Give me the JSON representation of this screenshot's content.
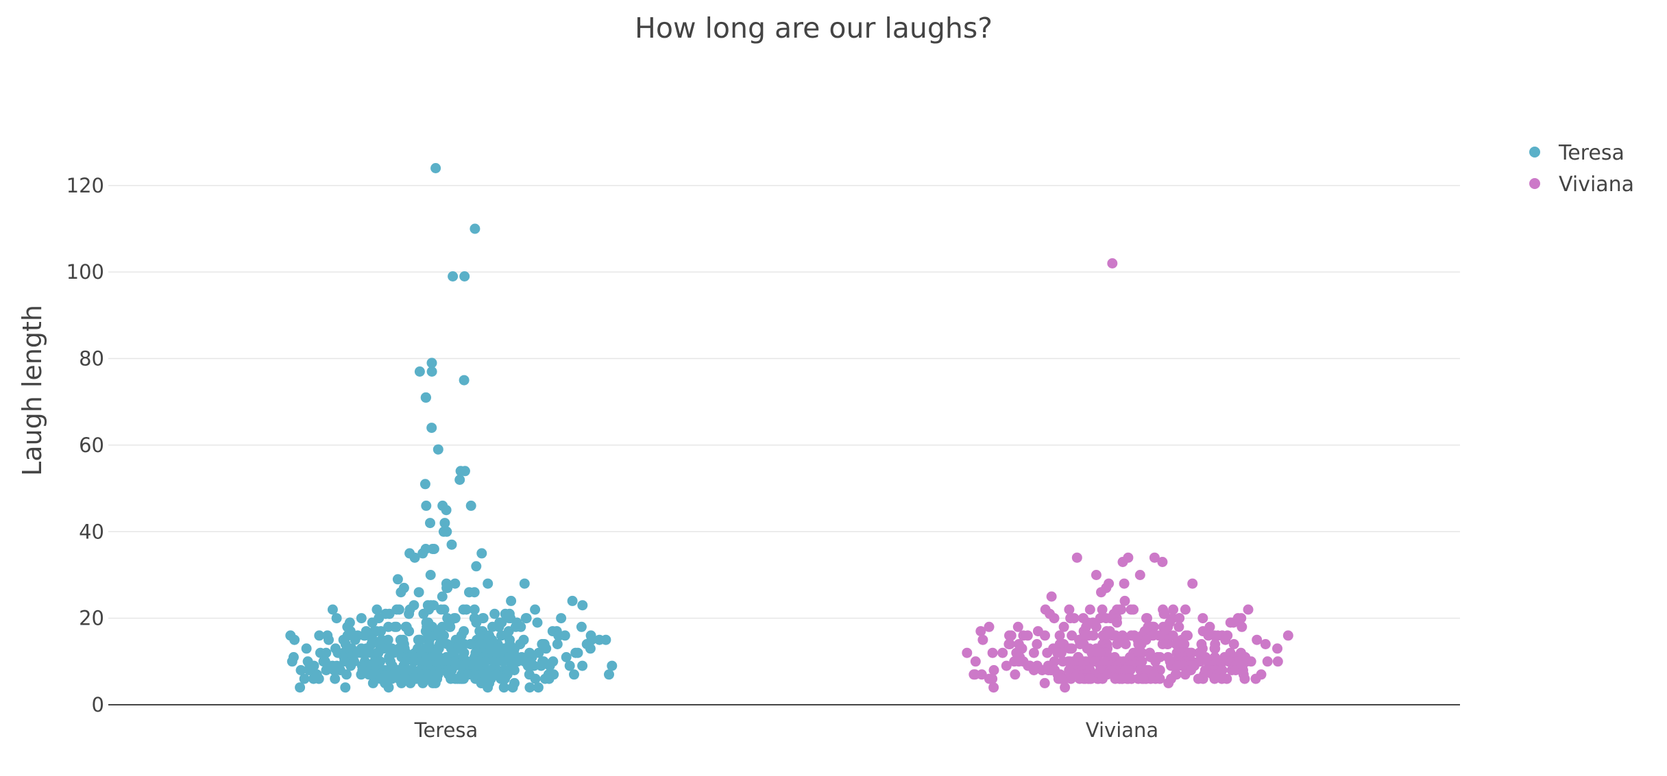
{
  "chart_data": {
    "type": "scatter",
    "title": "How long are our laughs?",
    "xlabel": "",
    "ylabel": "Laugh length",
    "categories": [
      "Teresa",
      "Viviana"
    ],
    "ylim": [
      0,
      132
    ],
    "yticks": [
      0,
      20,
      40,
      60,
      80,
      100,
      120
    ],
    "grid": true,
    "legend_position": "top-right",
    "series": [
      {
        "name": "Teresa",
        "color": "#5ab0c8",
        "category": "Teresa",
        "values": [
          124,
          110,
          99,
          99,
          79,
          77,
          77,
          75,
          71,
          71,
          64,
          59,
          54,
          54,
          52,
          51,
          46,
          46,
          46,
          45,
          42,
          42,
          40,
          40,
          37,
          36,
          36,
          36,
          35,
          35,
          35,
          34,
          32,
          30,
          29,
          28,
          28,
          28,
          28,
          27,
          27,
          27,
          26,
          26,
          26,
          26,
          25,
          24,
          24,
          23,
          23,
          23,
          23,
          23,
          22,
          22,
          22,
          22,
          22,
          22,
          22,
          22,
          22,
          22,
          22,
          22,
          21,
          21,
          21,
          21,
          21,
          21,
          21,
          20,
          20,
          20,
          20,
          20,
          20,
          20,
          20,
          20,
          20,
          20,
          20,
          20,
          20,
          19,
          19,
          19,
          19,
          19,
          19,
          19,
          19,
          19,
          19,
          18,
          18,
          18,
          18,
          18,
          18,
          18,
          18,
          18,
          18,
          18,
          18,
          18,
          18,
          18,
          18,
          17,
          17,
          17,
          17,
          17,
          17,
          17,
          17,
          17,
          17,
          17,
          17,
          17,
          17,
          17,
          17,
          16,
          16,
          16,
          16,
          16,
          16,
          16,
          16,
          16,
          16,
          16,
          16,
          16,
          16,
          16,
          16,
          16,
          16,
          16,
          16,
          15,
          15,
          15,
          15,
          15,
          15,
          15,
          15,
          15,
          15,
          15,
          15,
          15,
          15,
          15,
          15,
          15,
          15,
          15,
          15,
          15,
          15,
          15,
          15,
          14,
          14,
          14,
          14,
          14,
          14,
          14,
          14,
          14,
          14,
          14,
          14,
          14,
          14,
          14,
          14,
          14,
          14,
          14,
          14,
          14,
          14,
          14,
          14,
          14,
          14,
          14,
          14,
          13,
          13,
          13,
          13,
          13,
          13,
          13,
          13,
          13,
          13,
          13,
          13,
          13,
          13,
          13,
          13,
          13,
          13,
          13,
          13,
          13,
          13,
          13,
          13,
          13,
          13,
          13,
          13,
          13,
          13,
          12,
          12,
          12,
          12,
          12,
          12,
          12,
          12,
          12,
          12,
          12,
          12,
          12,
          12,
          12,
          12,
          12,
          12,
          12,
          12,
          12,
          12,
          12,
          12,
          12,
          12,
          12,
          12,
          12,
          12,
          12,
          12,
          11,
          11,
          11,
          11,
          11,
          11,
          11,
          11,
          11,
          11,
          11,
          11,
          11,
          11,
          11,
          11,
          11,
          11,
          11,
          11,
          11,
          11,
          11,
          11,
          11,
          11,
          11,
          11,
          11,
          11,
          11,
          11,
          11,
          11,
          10,
          10,
          10,
          10,
          10,
          10,
          10,
          10,
          10,
          10,
          10,
          10,
          10,
          10,
          10,
          10,
          10,
          10,
          10,
          10,
          10,
          10,
          10,
          10,
          10,
          10,
          10,
          10,
          10,
          10,
          10,
          10,
          10,
          10,
          10,
          10,
          9,
          9,
          9,
          9,
          9,
          9,
          9,
          9,
          9,
          9,
          9,
          9,
          9,
          9,
          9,
          9,
          9,
          9,
          9,
          9,
          9,
          9,
          9,
          9,
          9,
          9,
          9,
          9,
          9,
          9,
          9,
          9,
          9,
          9,
          9,
          9,
          9,
          9,
          8,
          8,
          8,
          8,
          8,
          8,
          8,
          8,
          8,
          8,
          8,
          8,
          8,
          8,
          8,
          8,
          8,
          8,
          8,
          8,
          8,
          8,
          8,
          8,
          8,
          8,
          8,
          8,
          8,
          8,
          8,
          8,
          8,
          8,
          8,
          8,
          8,
          8,
          8,
          8,
          7,
          7,
          7,
          7,
          7,
          7,
          7,
          7,
          7,
          7,
          7,
          7,
          7,
          7,
          7,
          7,
          7,
          7,
          7,
          7,
          7,
          7,
          7,
          7,
          7,
          7,
          7,
          7,
          7,
          7,
          7,
          7,
          7,
          7,
          7,
          7,
          7,
          7,
          6,
          6,
          6,
          6,
          6,
          6,
          6,
          6,
          6,
          6,
          6,
          6,
          6,
          6,
          6,
          6,
          6,
          6,
          6,
          6,
          6,
          6,
          6,
          6,
          6,
          6,
          6,
          6,
          6,
          6,
          6,
          6,
          6,
          6,
          6,
          6,
          5,
          5,
          5,
          5,
          5,
          5,
          5,
          5,
          5,
          5,
          5,
          5,
          4,
          4,
          4,
          4,
          4,
          4,
          4,
          4
        ]
      },
      {
        "name": "Viviana",
        "color": "#cc79c8",
        "category": "Viviana",
        "values": [
          102,
          34,
          34,
          34,
          33,
          33,
          30,
          30,
          28,
          28,
          28,
          27,
          26,
          25,
          24,
          22,
          22,
          22,
          22,
          22,
          22,
          22,
          22,
          22,
          22,
          22,
          22,
          22,
          21,
          21,
          21,
          21,
          21,
          20,
          20,
          20,
          20,
          20,
          20,
          20,
          20,
          20,
          20,
          20,
          20,
          20,
          20,
          20,
          20,
          19,
          19,
          19,
          19,
          19,
          19,
          18,
          18,
          18,
          18,
          18,
          18,
          18,
          18,
          18,
          18,
          18,
          18,
          18,
          18,
          18,
          18,
          17,
          17,
          17,
          17,
          17,
          17,
          17,
          17,
          16,
          16,
          16,
          16,
          16,
          16,
          16,
          16,
          16,
          16,
          16,
          16,
          16,
          16,
          16,
          16,
          16,
          16,
          16,
          16,
          16,
          16,
          16,
          16,
          16,
          16,
          16,
          16,
          16,
          16,
          15,
          15,
          15,
          15,
          15,
          15,
          15,
          15,
          15,
          15,
          14,
          14,
          14,
          14,
          14,
          14,
          14,
          14,
          14,
          14,
          14,
          14,
          14,
          14,
          14,
          14,
          14,
          14,
          14,
          14,
          14,
          14,
          14,
          14,
          14,
          14,
          13,
          13,
          13,
          13,
          13,
          13,
          13,
          13,
          13,
          13,
          13,
          13,
          13,
          13,
          12,
          12,
          12,
          12,
          12,
          12,
          12,
          12,
          12,
          12,
          12,
          12,
          12,
          12,
          12,
          12,
          12,
          12,
          12,
          12,
          12,
          12,
          12,
          12,
          12,
          12,
          12,
          12,
          12,
          12,
          12,
          12,
          12,
          12,
          12,
          12,
          11,
          11,
          11,
          11,
          11,
          11,
          11,
          11,
          11,
          11,
          11,
          11,
          11,
          11,
          11,
          11,
          10,
          10,
          10,
          10,
          10,
          10,
          10,
          10,
          10,
          10,
          10,
          10,
          10,
          10,
          10,
          10,
          10,
          10,
          10,
          10,
          10,
          10,
          10,
          10,
          10,
          10,
          10,
          10,
          10,
          10,
          10,
          10,
          10,
          10,
          10,
          10,
          10,
          10,
          10,
          10,
          10,
          10,
          10,
          10,
          10,
          10,
          10,
          10,
          10,
          10,
          9,
          9,
          9,
          9,
          9,
          9,
          9,
          9,
          9,
          9,
          9,
          9,
          9,
          9,
          9,
          9,
          9,
          9,
          9,
          9,
          9,
          9,
          9,
          9,
          9,
          9,
          9,
          9,
          9,
          9,
          8,
          8,
          8,
          8,
          8,
          8,
          8,
          8,
          8,
          8,
          8,
          8,
          8,
          8,
          8,
          8,
          8,
          8,
          8,
          8,
          8,
          8,
          8,
          8,
          8,
          8,
          8,
          8,
          8,
          8,
          8,
          8,
          8,
          8,
          8,
          8,
          8,
          8,
          8,
          8,
          8,
          8,
          8,
          8,
          8,
          8,
          8,
          8,
          8,
          8,
          7,
          7,
          7,
          7,
          7,
          7,
          7,
          7,
          7,
          7,
          7,
          7,
          7,
          7,
          7,
          7,
          7,
          7,
          7,
          7,
          6,
          6,
          6,
          6,
          6,
          6,
          6,
          6,
          6,
          6,
          6,
          6,
          6,
          6,
          6,
          6,
          6,
          6,
          6,
          6,
          6,
          6,
          6,
          6,
          6,
          6,
          6,
          6,
          6,
          6,
          6,
          6,
          6,
          6,
          6,
          6,
          6,
          6,
          6,
          6,
          5,
          5,
          4,
          4
        ]
      }
    ]
  }
}
